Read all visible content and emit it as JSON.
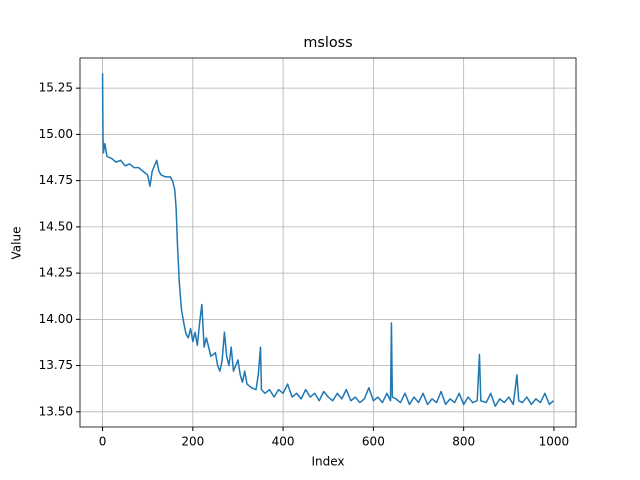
{
  "chart_data": {
    "type": "line",
    "title": "msloss",
    "xlabel": "Index",
    "ylabel": "Value",
    "x": [
      0,
      1,
      2,
      5,
      10,
      20,
      30,
      40,
      50,
      60,
      70,
      80,
      90,
      100,
      105,
      110,
      115,
      120,
      125,
      130,
      140,
      150,
      155,
      160,
      163,
      166,
      170,
      175,
      180,
      185,
      190,
      195,
      200,
      205,
      210,
      215,
      220,
      225,
      230,
      240,
      250,
      255,
      260,
      265,
      270,
      275,
      280,
      285,
      290,
      300,
      305,
      310,
      315,
      320,
      330,
      340,
      345,
      350,
      352,
      360,
      370,
      380,
      390,
      400,
      410,
      420,
      430,
      440,
      450,
      460,
      470,
      480,
      490,
      500,
      510,
      520,
      530,
      540,
      550,
      560,
      570,
      580,
      590,
      600,
      610,
      620,
      630,
      638,
      640,
      642,
      650,
      660,
      670,
      680,
      690,
      700,
      710,
      720,
      730,
      740,
      750,
      760,
      770,
      780,
      790,
      800,
      810,
      820,
      830,
      835,
      838,
      850,
      860,
      870,
      880,
      890,
      900,
      910,
      918,
      922,
      930,
      940,
      950,
      960,
      970,
      980,
      990,
      999
    ],
    "values": [
      15.33,
      14.98,
      14.9,
      14.95,
      14.88,
      14.87,
      14.85,
      14.86,
      14.83,
      14.84,
      14.82,
      14.82,
      14.8,
      14.78,
      14.72,
      14.8,
      14.83,
      14.86,
      14.8,
      14.78,
      14.77,
      14.77,
      14.75,
      14.7,
      14.6,
      14.4,
      14.2,
      14.05,
      13.98,
      13.92,
      13.9,
      13.95,
      13.88,
      13.93,
      13.86,
      13.98,
      14.08,
      13.85,
      13.9,
      13.8,
      13.82,
      13.75,
      13.72,
      13.78,
      13.93,
      13.8,
      13.75,
      13.85,
      13.72,
      13.78,
      13.7,
      13.66,
      13.72,
      13.65,
      13.63,
      13.62,
      13.7,
      13.85,
      13.62,
      13.6,
      13.62,
      13.58,
      13.62,
      13.6,
      13.65,
      13.58,
      13.6,
      13.57,
      13.62,
      13.58,
      13.6,
      13.56,
      13.61,
      13.58,
      13.56,
      13.6,
      13.57,
      13.62,
      13.56,
      13.58,
      13.55,
      13.57,
      13.63,
      13.56,
      13.58,
      13.55,
      13.6,
      13.56,
      13.98,
      13.58,
      13.57,
      13.55,
      13.6,
      13.54,
      13.58,
      13.55,
      13.6,
      13.54,
      13.57,
      13.55,
      13.61,
      13.54,
      13.57,
      13.55,
      13.6,
      13.54,
      13.58,
      13.55,
      13.56,
      13.81,
      13.56,
      13.55,
      13.6,
      13.53,
      13.57,
      13.55,
      13.58,
      13.54,
      13.7,
      13.56,
      13.55,
      13.58,
      13.54,
      13.57,
      13.55,
      13.6,
      13.54,
      13.56
    ],
    "color": "#1f77b4",
    "xlim": [
      -49.95,
      1048.9
    ],
    "xticks": [
      0,
      200,
      400,
      600,
      800,
      1000
    ],
    "ylim": [
      13.418,
      15.413
    ],
    "yticks": [
      {
        "value": 13.5,
        "label": "13.50"
      },
      13.75,
      {
        "value": 14.0,
        "label": "14.00"
      },
      14.25,
      {
        "value": 14.5,
        "label": "14.50"
      },
      14.75,
      {
        "value": 15.0,
        "label": "15.00"
      },
      15.25
    ],
    "grid": true
  }
}
